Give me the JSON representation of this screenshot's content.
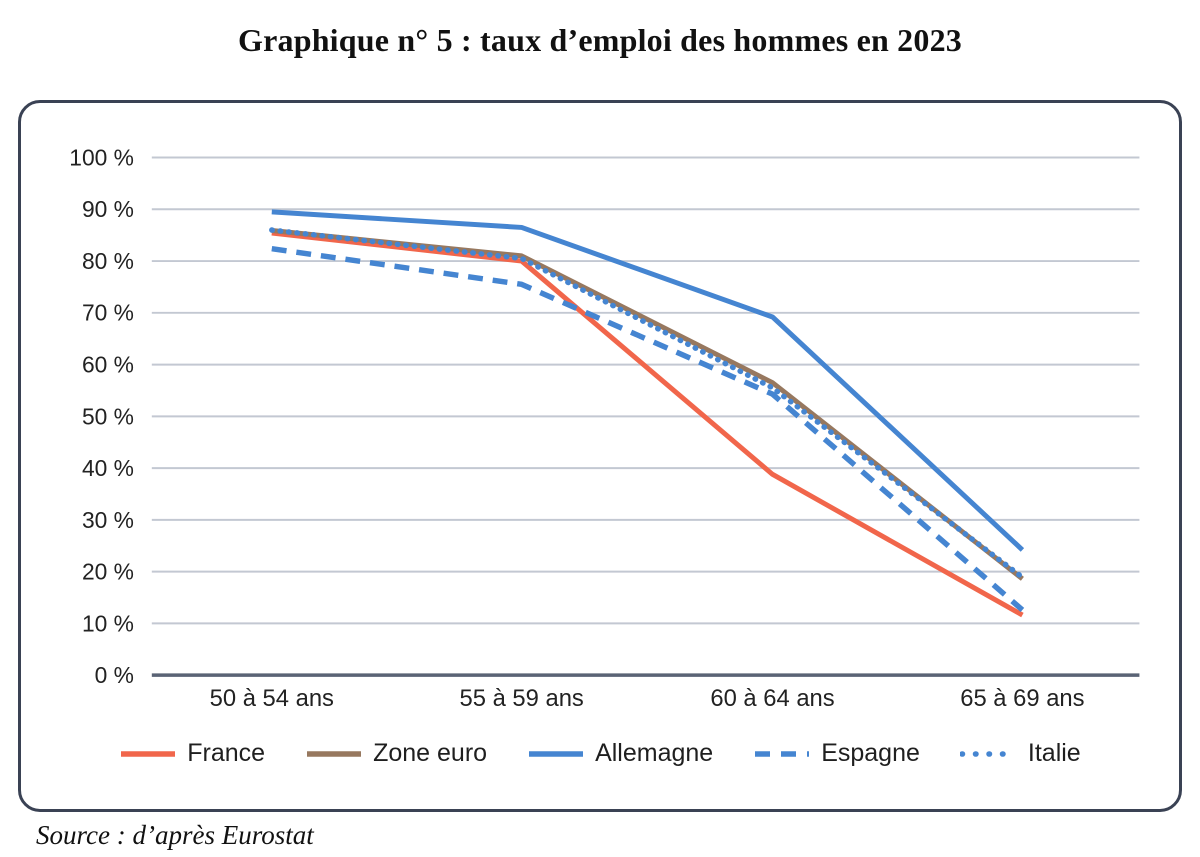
{
  "page": {
    "title": "Graphique n° 5 : taux d’emploi des hommes en 2023",
    "source_note": "Source : d’après Eurostat"
  },
  "colors": {
    "france": "#F1664B",
    "zone_euro": "#97785F",
    "blue": "#4585D1",
    "gridline": "#C3C8D2",
    "zero_line": "#5A6375",
    "card_border": "#3A4254",
    "text": "#222222"
  },
  "chart_data": {
    "type": "line",
    "title": "Graphique n° 5 : taux d’emploi des hommes en 2023",
    "xlabel": "",
    "ylabel": "",
    "ylim": [
      0,
      100
    ],
    "y_tick_step": 10,
    "y_tick_suffix": " %",
    "y_tick_labels": [
      "0 %",
      "10 %",
      "20 %",
      "30 %",
      "40 %",
      "50 %",
      "60 %",
      "70 %",
      "80 %",
      "90 %",
      "100 %"
    ],
    "grid": true,
    "legend_position": "bottom",
    "categories": [
      "50 à 54 ans",
      "55 à 59 ans",
      "60 à 64 ans",
      "65 à 69 ans"
    ],
    "series": [
      {
        "name": "France",
        "color_key": "france",
        "style": "solid",
        "values": [
          85.4,
          80.0,
          38.8,
          11.6
        ]
      },
      {
        "name": "Zone euro",
        "color_key": "zone_euro",
        "style": "solid",
        "values": [
          85.9,
          81.0,
          56.5,
          18.6
        ]
      },
      {
        "name": "Allemagne",
        "color_key": "blue",
        "style": "solid",
        "values": [
          89.5,
          86.5,
          69.2,
          24.2
        ]
      },
      {
        "name": "Espagne",
        "color_key": "blue",
        "style": "dashed",
        "values": [
          82.4,
          75.5,
          54.3,
          12.6
        ]
      },
      {
        "name": "Italie",
        "color_key": "blue",
        "style": "dotted",
        "values": [
          86.0,
          80.5,
          55.5,
          18.9
        ]
      }
    ]
  }
}
